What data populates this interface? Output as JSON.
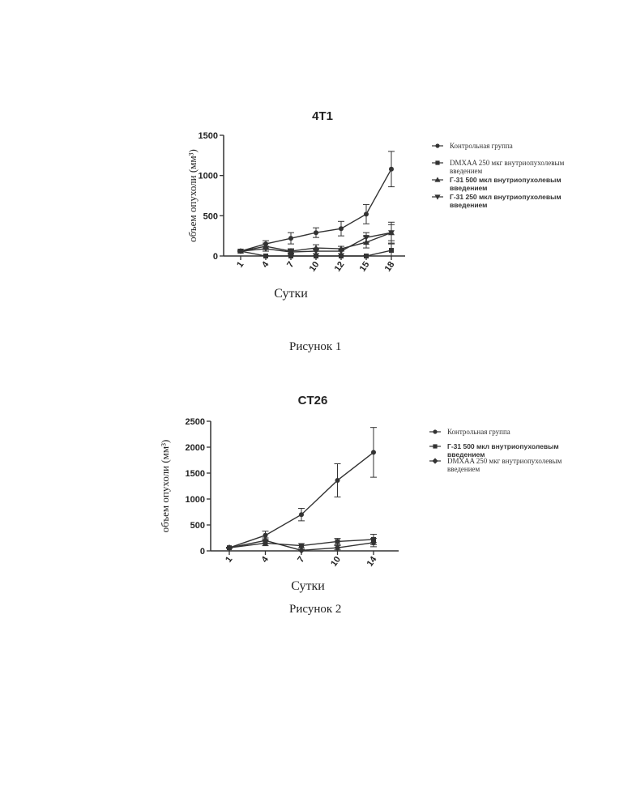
{
  "captions": [
    "Рисунок 1",
    "Рисунок 2"
  ],
  "chart_data": [
    {
      "type": "line",
      "title": "4T1",
      "xlabel": "Сутки",
      "ylabel": "объем опухоли (мм³)",
      "categories": [
        "1",
        "4",
        "7",
        "10",
        "12",
        "15",
        "18"
      ],
      "ylim": [
        0,
        1500
      ],
      "yticks": [
        0,
        500,
        1000,
        1500
      ],
      "legend_position": "right",
      "series": [
        {
          "name": "Контрольная группа",
          "marker": "circle",
          "legend_style": "regular",
          "values": [
            60,
            150,
            220,
            290,
            340,
            520,
            1080
          ],
          "errors": [
            10,
            40,
            70,
            60,
            90,
            120,
            220
          ]
        },
        {
          "name": "DMXAA 250 мкг внутриопухолевым введением",
          "marker": "square",
          "legend_style": "regular",
          "values": [
            60,
            0,
            0,
            0,
            0,
            0,
            70
          ],
          "errors": [
            5,
            5,
            5,
            5,
            5,
            5,
            80
          ]
        },
        {
          "name": "Г-31 500 мкл внутриопухолевым введением",
          "marker": "triangle-up",
          "legend_style": "bold",
          "values": [
            60,
            120,
            60,
            100,
            90,
            170,
            290
          ],
          "errors": [
            10,
            40,
            30,
            40,
            30,
            70,
            130
          ]
        },
        {
          "name": "Г-31 250 мкл внутриопухолевым введением",
          "marker": "triangle-down",
          "legend_style": "bold",
          "values": [
            60,
            90,
            50,
            60,
            60,
            230,
            290
          ],
          "errors": [
            10,
            30,
            30,
            30,
            30,
            60,
            100
          ]
        }
      ]
    },
    {
      "type": "line",
      "title": "CT26",
      "xlabel": "Сутки",
      "ylabel": "объем опухоли (мм³)",
      "categories": [
        "1",
        "4",
        "7",
        "10",
        "14"
      ],
      "ylim": [
        0,
        2500
      ],
      "yticks": [
        0,
        500,
        1000,
        1500,
        2000,
        2500
      ],
      "legend_position": "right",
      "series": [
        {
          "name": "Контрольная группа",
          "marker": "circle",
          "legend_style": "regular",
          "values": [
            60,
            300,
            700,
            1360,
            1900
          ],
          "errors": [
            10,
            80,
            120,
            320,
            480
          ]
        },
        {
          "name": "Г-31 500 мкл внутриопухолевым введением",
          "marker": "square",
          "legend_style": "bold",
          "values": [
            60,
            150,
            100,
            180,
            220
          ],
          "errors": [
            10,
            50,
            40,
            60,
            100
          ]
        },
        {
          "name": "DMXAA 250 мкг внутриопухолевым введением",
          "marker": "diamond",
          "legend_style": "regular",
          "values": [
            60,
            200,
            10,
            60,
            160
          ],
          "errors": [
            10,
            50,
            20,
            40,
            80
          ]
        }
      ]
    }
  ]
}
